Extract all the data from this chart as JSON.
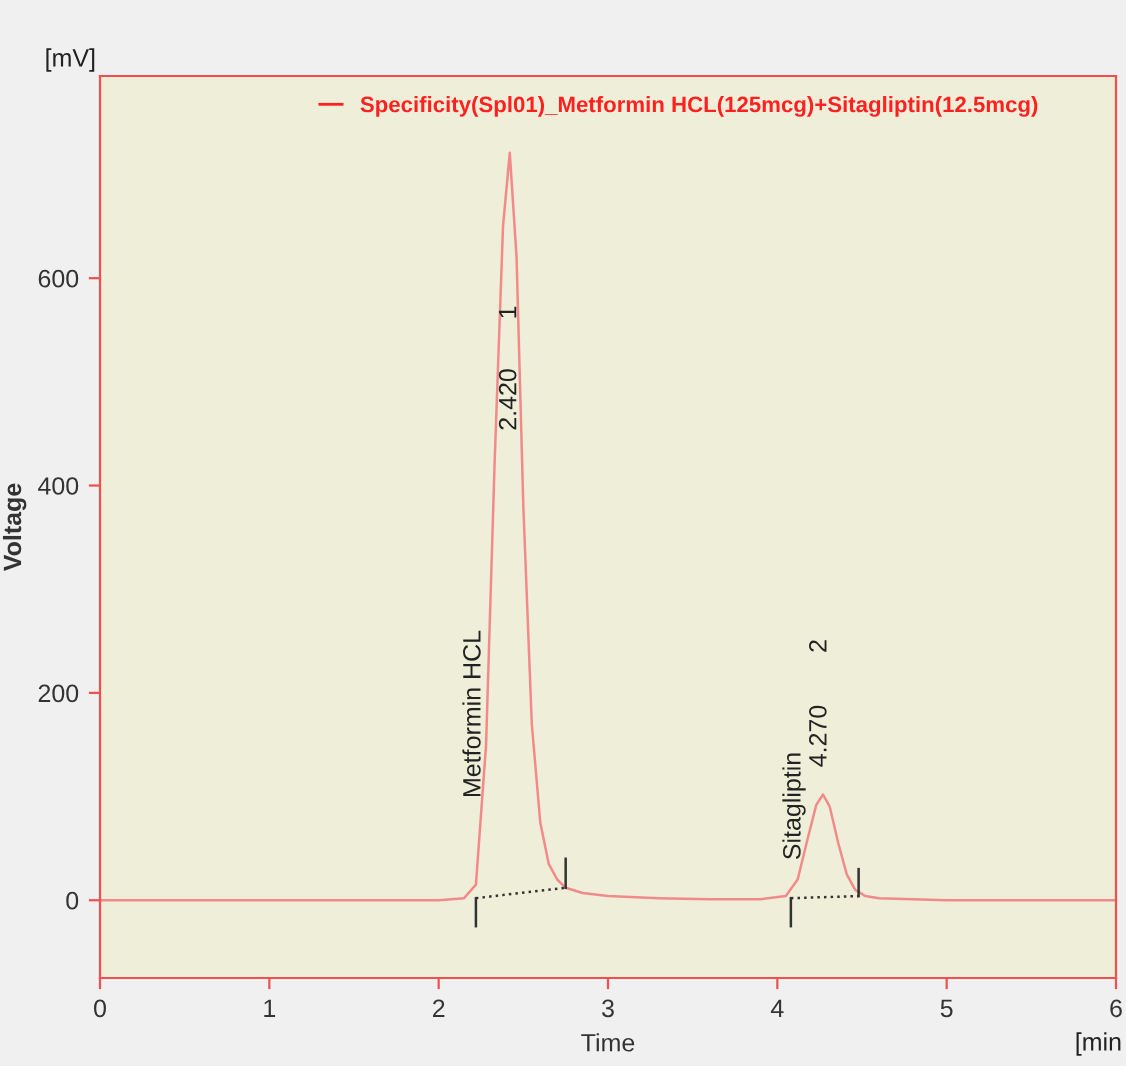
{
  "chart_data": {
    "type": "line",
    "xlabel": "Time",
    "ylabel": "Voltage",
    "xlim": [
      0,
      6
    ],
    "ylim": [
      -75,
      795
    ],
    "xticks": [
      0,
      1,
      2,
      3,
      4,
      5,
      6
    ],
    "yticks": [
      0,
      200,
      400,
      600
    ],
    "grid": false,
    "legend": "top",
    "marker": "none",
    "series": [
      {
        "name": "Specificity(Spl01)_Metformin HCL(125mcg)+Sitagliptin(12.5mcg)",
        "color": "#f28a8a",
        "line_style": "solid",
        "x": [
          0,
          1,
          2,
          2.15,
          2.22,
          2.28,
          2.33,
          2.38,
          2.42,
          2.46,
          2.5,
          2.55,
          2.6,
          2.65,
          2.7,
          2.75,
          2.85,
          3.0,
          3.3,
          3.6,
          3.9,
          4.05,
          4.12,
          4.18,
          4.23,
          4.27,
          4.31,
          4.36,
          4.41,
          4.46,
          4.52,
          4.6,
          5,
          6
        ],
        "values": [
          0,
          0,
          0,
          2,
          15,
          150,
          420,
          650,
          721,
          620,
          380,
          170,
          75,
          35,
          20,
          12,
          7,
          4,
          2,
          1,
          1,
          4,
          20,
          60,
          92,
          102,
          90,
          55,
          25,
          10,
          4,
          2,
          0,
          0
        ]
      },
      {
        "color": "#333333",
        "line_style": "dotted",
        "x": [
          2.22,
          2.75
        ],
        "values": [
          2,
          12
        ]
      },
      {
        "color": "#333333",
        "line_style": "dotted",
        "x": [
          4.08,
          4.48
        ],
        "values": [
          2,
          4
        ]
      },
      {
        "color": "#333333",
        "line_style": "solid",
        "x": [
          2.22,
          2.22
        ],
        "values": [
          -25,
          2
        ]
      },
      {
        "color": "#333333",
        "line_style": "solid",
        "x": [
          2.75,
          2.75
        ],
        "values": [
          12,
          40
        ]
      },
      {
        "color": "#333333",
        "line_style": "solid",
        "x": [
          4.08,
          4.08
        ],
        "values": [
          -25,
          2
        ]
      },
      {
        "color": "#333333",
        "line_style": "solid",
        "x": [
          4.48,
          4.48
        ],
        "values": [
          4,
          30
        ]
      }
    ],
    "annotations": [
      "[mV]",
      "[min",
      {
        "text": "2.420",
        "x": 2.42,
        "y": 483
      },
      {
        "text": "1",
        "x": 2.42,
        "y": 567
      },
      "Metformin HCL",
      "4.270",
      "2",
      "Sitagliptin"
    ]
  }
}
